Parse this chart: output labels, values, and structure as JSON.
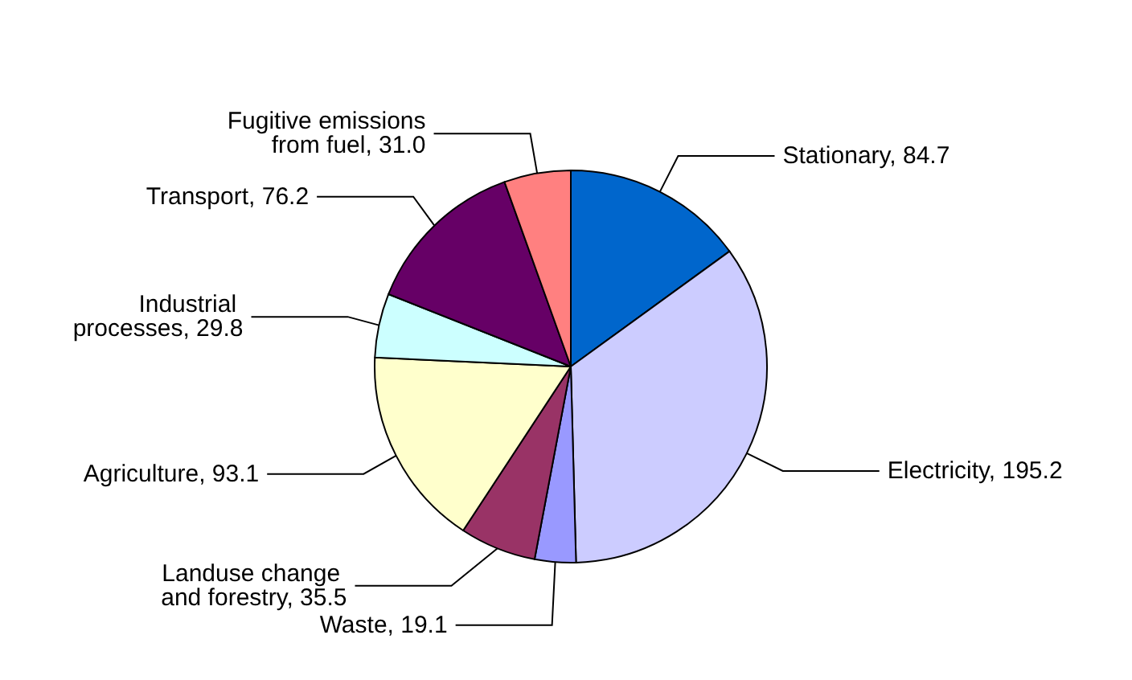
{
  "chart_data": {
    "type": "pie",
    "categories": [
      "Stationary",
      "Electricity",
      "Waste",
      "Landuse change and forestry",
      "Agriculture",
      "Industrial processes",
      "Transport",
      "Fugitive emissions from fuel"
    ],
    "values": [
      84.7,
      195.2,
      19.1,
      35.5,
      93.1,
      29.8,
      76.2,
      31.0
    ],
    "value_labels": [
      "84.7",
      "195.2",
      "19.1",
      "35.5",
      "93.1",
      "29.8",
      "76.2",
      "31.0"
    ],
    "colors": [
      "#0066cc",
      "#ccccff",
      "#9999ff",
      "#993366",
      "#ffffcc",
      "#ccffff",
      "#660066",
      "#ff8080"
    ],
    "legend": false
  }
}
